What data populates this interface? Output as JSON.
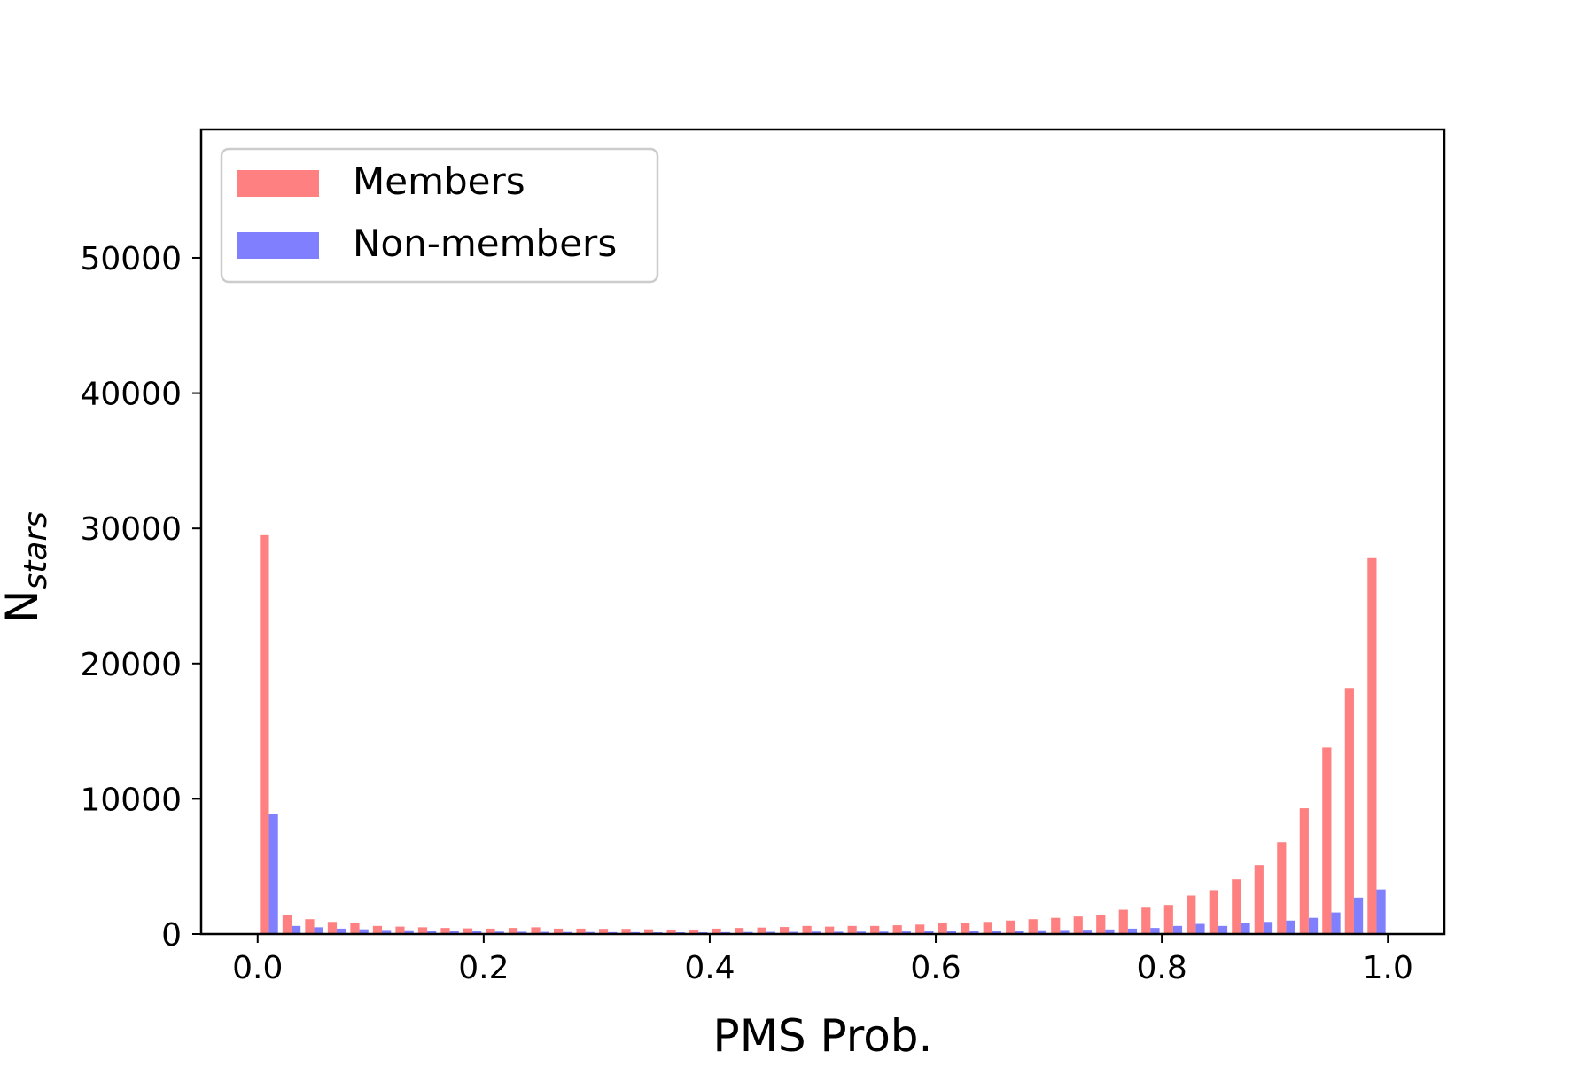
{
  "chart_data": {
    "type": "bar",
    "title": "",
    "xlabel": "PMS Prob.",
    "ylabel_main": "N",
    "ylabel_sub": "stars",
    "xlim": [
      -0.05,
      1.05
    ],
    "ylim": [
      0,
      59500
    ],
    "xticks": [
      0.0,
      0.2,
      0.4,
      0.6,
      0.8,
      1.0
    ],
    "xtick_labels": [
      "0.0",
      "0.2",
      "0.4",
      "0.6",
      "0.8",
      "1.0"
    ],
    "yticks": [
      0,
      10000,
      20000,
      30000,
      40000,
      50000
    ],
    "ytick_labels": [
      "0",
      "10000",
      "20000",
      "30000",
      "40000",
      "50000"
    ],
    "grid": false,
    "legend_position": "upper-left",
    "bins": 50,
    "bin_range": [
      0,
      1
    ],
    "series": [
      {
        "name": "Members",
        "color": "#ff8080",
        "values": [
          29500,
          1400,
          1100,
          900,
          800,
          600,
          550,
          500,
          450,
          420,
          400,
          450,
          500,
          400,
          400,
          380,
          380,
          350,
          330,
          330,
          400,
          450,
          480,
          520,
          600,
          550,
          600,
          600,
          650,
          700,
          800,
          850,
          900,
          1000,
          1100,
          1200,
          1300,
          1400,
          1800,
          1950,
          2150,
          2850,
          3250,
          4050,
          5100,
          6800,
          9300,
          13800,
          18200,
          27800
        ]
      },
      {
        "name": "Non-members",
        "color": "#8080ff",
        "values": [
          8900,
          600,
          500,
          400,
          350,
          300,
          280,
          250,
          220,
          200,
          180,
          170,
          160,
          150,
          150,
          140,
          140,
          130,
          130,
          130,
          140,
          150,
          160,
          160,
          180,
          170,
          180,
          180,
          190,
          200,
          200,
          220,
          240,
          260,
          280,
          300,
          320,
          340,
          400,
          450,
          600,
          750,
          600,
          850,
          900,
          1000,
          1200,
          1600,
          2700,
          3300
        ]
      }
    ]
  }
}
